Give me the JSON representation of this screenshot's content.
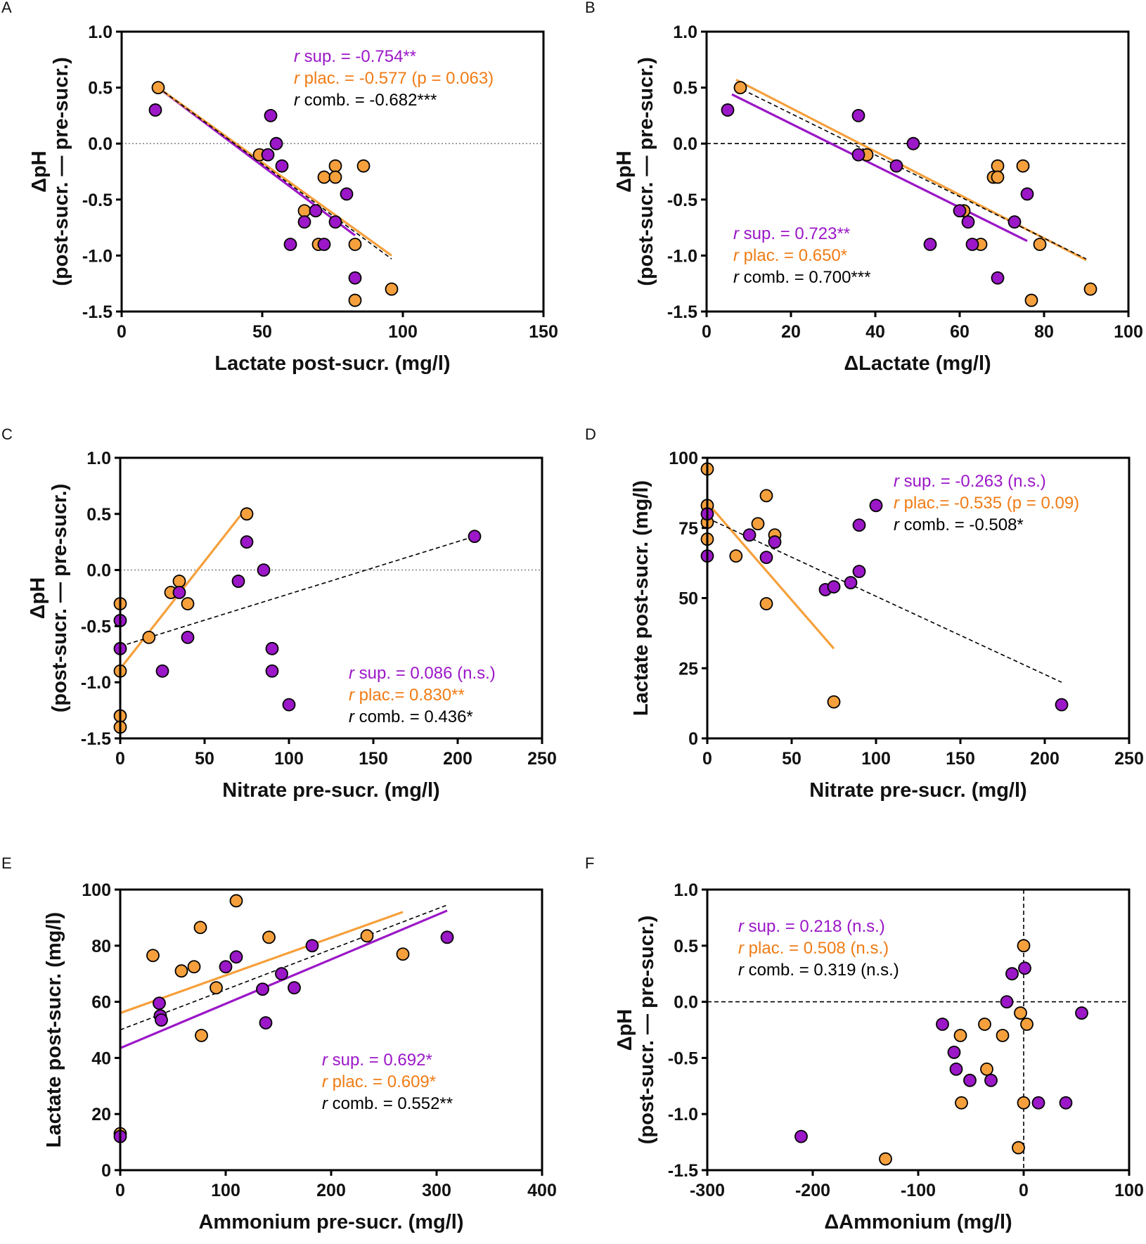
{
  "figure_title": "",
  "colors": {
    "sup": "#9b17c7",
    "plac": "#f5a03c",
    "plac_text": "#f07c16",
    "comb": "#000000"
  },
  "chart_data": [
    {
      "panel": "A",
      "type": "scatter",
      "xlabel": "Lactate post-sucr. (mg/l)",
      "ylabel": [
        "ΔpH",
        "(post-sucr. — pre-sucr.)"
      ],
      "xlim": [
        0,
        150
      ],
      "ylim": [
        -1.5,
        1.0
      ],
      "xticks": [
        0,
        50,
        100,
        150
      ],
      "yticks": [
        1.0,
        0.5,
        0.0,
        -0.5,
        -1.0,
        -1.5
      ],
      "xtick_labels": [
        "0",
        "50",
        "100",
        "150"
      ],
      "ytick_labels": [
        "1.0",
        "0.5",
        "0.0",
        "-0.5",
        "-1.0",
        "-1.5"
      ],
      "refline": {
        "axis": "y",
        "value": 0,
        "style": "dotted"
      },
      "annotations": {
        "sup": " sup. = -0.754**",
        "plac": " plac. = -0.577 (p = 0.063)",
        "comb": " comb. =  -0.682***"
      },
      "annotation_position": "top-right",
      "series": [
        {
          "name": "sup",
          "points": [
            [
              12,
              0.3
            ],
            [
              53,
              0.25
            ],
            [
              52,
              -0.1
            ],
            [
              55,
              0.0
            ],
            [
              57,
              -0.2
            ],
            [
              65,
              -0.7
            ],
            [
              69,
              -0.6
            ],
            [
              60,
              -0.9
            ],
            [
              72,
              -0.9
            ],
            [
              76,
              -0.7
            ],
            [
              80,
              -0.45
            ],
            [
              83,
              -1.2
            ]
          ],
          "fit": [
            [
              14,
              0.48
            ],
            [
              83,
              -0.82
            ]
          ]
        },
        {
          "name": "plac",
          "points": [
            [
              13,
              0.5
            ],
            [
              49,
              -0.1
            ],
            [
              65,
              -0.6
            ],
            [
              72,
              -0.3
            ],
            [
              76,
              -0.2
            ],
            [
              76,
              -0.3
            ],
            [
              86,
              -0.2
            ],
            [
              70,
              -0.9
            ],
            [
              83,
              -0.9
            ],
            [
              83,
              -1.4
            ],
            [
              96,
              -1.3
            ]
          ],
          "fit": [
            [
              13,
              0.5
            ],
            [
              96,
              -1.0
            ]
          ]
        },
        {
          "name": "comb",
          "fit": [
            [
              13,
              0.5
            ],
            [
              96,
              -1.03
            ]
          ]
        }
      ]
    },
    {
      "panel": "B",
      "type": "scatter",
      "xlabel": "ΔLactate (mg/l)",
      "ylabel": [
        "ΔpH",
        "(post-sucr. — pre-sucr.)"
      ],
      "xlim": [
        0,
        100
      ],
      "ylim": [
        -1.5,
        1.0
      ],
      "xticks": [
        0,
        20,
        40,
        60,
        80,
        100
      ],
      "yticks": [
        1.0,
        0.5,
        0.0,
        -0.5,
        -1.0,
        -1.5
      ],
      "xtick_labels": [
        "0",
        "20",
        "40",
        "60",
        "80",
        "100"
      ],
      "ytick_labels": [
        "1.0",
        "0.5",
        "0.0",
        "-0.5",
        "-1.0",
        "-1.5"
      ],
      "refline": {
        "axis": "y",
        "value": 0,
        "style": "dashed"
      },
      "annotations": {
        "sup": " sup. = 0.723**",
        "plac": " plac. = 0.650*",
        "comb": " comb. =  0.700***"
      },
      "annotation_position": "bottom-left",
      "series": [
        {
          "name": "sup",
          "points": [
            [
              5,
              0.3
            ],
            [
              36,
              0.25
            ],
            [
              36,
              -0.1
            ],
            [
              45,
              -0.2
            ],
            [
              49,
              0.0
            ],
            [
              53,
              -0.9
            ],
            [
              60,
              -0.6
            ],
            [
              62,
              -0.7
            ],
            [
              63,
              -0.9
            ],
            [
              69,
              -1.2
            ],
            [
              73,
              -0.7
            ],
            [
              76,
              -0.45
            ]
          ],
          "fit": [
            [
              6,
              0.44
            ],
            [
              76,
              -0.87
            ]
          ]
        },
        {
          "name": "plac",
          "points": [
            [
              8,
              0.5
            ],
            [
              38,
              -0.1
            ],
            [
              61,
              -0.6
            ],
            [
              65,
              -0.9
            ],
            [
              68,
              -0.3
            ],
            [
              69,
              -0.2
            ],
            [
              69,
              -0.3
            ],
            [
              75,
              -0.2
            ],
            [
              77,
              -1.4
            ],
            [
              79,
              -0.9
            ],
            [
              91,
              -1.3
            ]
          ],
          "fit": [
            [
              7,
              0.57
            ],
            [
              90,
              -1.04
            ]
          ]
        },
        {
          "name": "comb",
          "fit": [
            [
              7,
              0.51
            ],
            [
              90,
              -1.03
            ]
          ]
        }
      ]
    },
    {
      "panel": "C",
      "type": "scatter",
      "xlabel": "Nitrate pre-sucr. (mg/l)",
      "ylabel": [
        "ΔpH",
        "(post-sucr. — pre-sucr.)"
      ],
      "xlim": [
        0,
        250
      ],
      "ylim": [
        -1.5,
        1.0
      ],
      "xticks": [
        0,
        50,
        100,
        150,
        200,
        250
      ],
      "yticks": [
        1.0,
        0.5,
        0.0,
        -0.5,
        -1.0,
        -1.5
      ],
      "xtick_labels": [
        "0",
        "50",
        "100",
        "150",
        "200",
        "250"
      ],
      "ytick_labels": [
        "1.0",
        "0.5",
        "0.0",
        "-0.5",
        "-1.0",
        "-1.5"
      ],
      "refline": {
        "axis": "y",
        "value": 0,
        "style": "dotted"
      },
      "annotations": {
        "sup": " sup. = 0.086 (n.s.)",
        "plac": " plac.= 0.830**",
        "comb": " comb. = 0.436*"
      },
      "annotation_position": "bottom-right",
      "series": [
        {
          "name": "sup",
          "points": [
            [
              0,
              -0.45
            ],
            [
              0,
              -0.7
            ],
            [
              25,
              -0.9
            ],
            [
              35,
              -0.2
            ],
            [
              40,
              -0.6
            ],
            [
              70,
              -0.1
            ],
            [
              75,
              0.25
            ],
            [
              85,
              0.0
            ],
            [
              90,
              -0.7
            ],
            [
              90,
              -0.9
            ],
            [
              100,
              -1.2
            ],
            [
              210,
              0.3
            ]
          ],
          "fit": null
        },
        {
          "name": "plac",
          "points": [
            [
              0,
              -0.3
            ],
            [
              0,
              -0.9
            ],
            [
              0,
              -1.3
            ],
            [
              0,
              -1.4
            ],
            [
              17,
              -0.6
            ],
            [
              30,
              -0.2
            ],
            [
              35,
              -0.1
            ],
            [
              40,
              -0.3
            ],
            [
              75,
              0.5
            ]
          ],
          "fit": [
            [
              0,
              -0.88
            ],
            [
              72,
              0.5
            ]
          ]
        },
        {
          "name": "comb",
          "fit": [
            [
              0,
              -0.68
            ],
            [
              210,
              0.3
            ]
          ]
        }
      ]
    },
    {
      "panel": "D",
      "type": "scatter",
      "xlabel": "Nitrate pre-sucr. (mg/l)",
      "ylabel": [
        "Lactate post-sucr. (mg/l)"
      ],
      "xlim": [
        0,
        250
      ],
      "ylim": [
        0,
        100
      ],
      "xticks": [
        0,
        50,
        100,
        150,
        200,
        250
      ],
      "yticks": [
        100,
        75,
        50,
        25,
        0
      ],
      "xtick_labels": [
        "0",
        "50",
        "100",
        "150",
        "200",
        "250"
      ],
      "ytick_labels": [
        "100",
        "75",
        "50",
        "25",
        "0"
      ],
      "refline": null,
      "annotations": {
        "sup": " sup. = -0.263  (n.s.)",
        "plac": " plac.= -0.535  (p = 0.09)",
        "comb": " comb. = -0.508*"
      },
      "annotation_position": "top-right",
      "series": [
        {
          "name": "sup",
          "points": [
            [
              0,
              80
            ],
            [
              0,
              65
            ],
            [
              25,
              72.5
            ],
            [
              35,
              64.5
            ],
            [
              40,
              70
            ],
            [
              70,
              53
            ],
            [
              75,
              54
            ],
            [
              85,
              55.5
            ],
            [
              90,
              76
            ],
            [
              90,
              59.5
            ],
            [
              100,
              83
            ],
            [
              210,
              12
            ]
          ],
          "fit": null
        },
        {
          "name": "plac",
          "points": [
            [
              0,
              96
            ],
            [
              0,
              83
            ],
            [
              0,
              77
            ],
            [
              0,
              71
            ],
            [
              17,
              65
            ],
            [
              30,
              76.5
            ],
            [
              35,
              86.5
            ],
            [
              35,
              48
            ],
            [
              40,
              72.5
            ],
            [
              75,
              13
            ]
          ],
          "fit": [
            [
              0,
              84
            ],
            [
              75,
              32
            ]
          ]
        },
        {
          "name": "comb",
          "fit": [
            [
              0,
              78.5
            ],
            [
              210,
              20
            ]
          ]
        }
      ]
    },
    {
      "panel": "E",
      "type": "scatter",
      "xlabel": "Ammonium pre-sucr. (mg/l)",
      "ylabel": [
        "Lactate post-sucr. (mg/l)"
      ],
      "xlim": [
        0,
        400
      ],
      "ylim": [
        0,
        100
      ],
      "xticks": [
        0,
        100,
        200,
        300,
        400
      ],
      "yticks": [
        100,
        80,
        60,
        40,
        20,
        0
      ],
      "xtick_labels": [
        "0",
        "100",
        "200",
        "300",
        "400"
      ],
      "ytick_labels": [
        "100",
        "80",
        "60",
        "40",
        "20",
        "0"
      ],
      "refline": null,
      "annotations": {
        "sup": " sup. = 0.692*",
        "plac": " plac. = 0.609*",
        "comb": " comb. =  0.552**"
      },
      "annotation_position": "bottom-right",
      "series": [
        {
          "name": "sup",
          "points": [
            [
              0,
              12
            ],
            [
              37,
              59.5
            ],
            [
              38,
              55
            ],
            [
              39,
              53.5
            ],
            [
              100,
              72.5
            ],
            [
              110,
              76
            ],
            [
              135,
              64.5
            ],
            [
              138,
              52.5
            ],
            [
              153,
              70
            ],
            [
              165,
              65
            ],
            [
              182,
              80
            ],
            [
              310,
              83
            ]
          ],
          "fit": [
            [
              0,
              43.5
            ],
            [
              310,
              92.5
            ]
          ]
        },
        {
          "name": "plac",
          "points": [
            [
              0,
              13
            ],
            [
              31,
              76.5
            ],
            [
              58,
              71
            ],
            [
              70,
              72.5
            ],
            [
              76,
              86.5
            ],
            [
              77,
              48
            ],
            [
              91,
              65
            ],
            [
              110,
              96
            ],
            [
              141,
              83
            ],
            [
              234,
              83.5
            ],
            [
              268,
              77
            ]
          ],
          "fit": [
            [
              0,
              56
            ],
            [
              268,
              92
            ]
          ]
        },
        {
          "name": "comb",
          "fit": [
            [
              0,
              50
            ],
            [
              310,
              94.5
            ]
          ]
        }
      ]
    },
    {
      "panel": "F",
      "type": "scatter",
      "xlabel": "ΔAmmonium (mg/l)",
      "ylabel": [
        "ΔpH",
        "(post-sucr. — pre-sucr.)"
      ],
      "xlim": [
        -300,
        100
      ],
      "ylim": [
        -1.5,
        1.0
      ],
      "xticks": [
        -300,
        -200,
        -100,
        0,
        100
      ],
      "yticks": [
        1.0,
        0.5,
        0.0,
        -0.5,
        -1.0,
        -1.5
      ],
      "xtick_labels": [
        "-300",
        "-200",
        "-100",
        "0",
        "100"
      ],
      "ytick_labels": [
        "1.0",
        "0.5",
        "0.0",
        "-0.5",
        "-1.0",
        "-1.5"
      ],
      "refline": {
        "axis": "both",
        "value": 0,
        "style": "dashed"
      },
      "annotations": {
        "sup": " sup. = 0.218 (n.s.)",
        "plac": " plac. = 0.508 (n.s.)",
        "comb": " comb. = 0.319 (n.s.)"
      },
      "annotation_position": "top-left",
      "series": [
        {
          "name": "sup",
          "points": [
            [
              -211,
              -1.2
            ],
            [
              -77,
              -0.2
            ],
            [
              -66,
              -0.45
            ],
            [
              -64,
              -0.6
            ],
            [
              -51,
              -0.7
            ],
            [
              -31,
              -0.7
            ],
            [
              -16,
              0.0
            ],
            [
              -11,
              0.25
            ],
            [
              1,
              0.3
            ],
            [
              14,
              -0.9
            ],
            [
              40,
              -0.9
            ],
            [
              55,
              -0.1
            ]
          ],
          "fit": null
        },
        {
          "name": "plac",
          "points": [
            [
              -131,
              -1.4
            ],
            [
              -60,
              -0.3
            ],
            [
              -59,
              -0.9
            ],
            [
              -37,
              -0.2
            ],
            [
              -35,
              -0.6
            ],
            [
              -20,
              -0.3
            ],
            [
              -5,
              -1.3
            ],
            [
              -3,
              -0.1
            ],
            [
              0,
              0.5
            ],
            [
              0,
              -0.9
            ],
            [
              3,
              -0.2
            ]
          ],
          "fit": null
        },
        {
          "name": "comb",
          "fit": null
        }
      ]
    }
  ]
}
